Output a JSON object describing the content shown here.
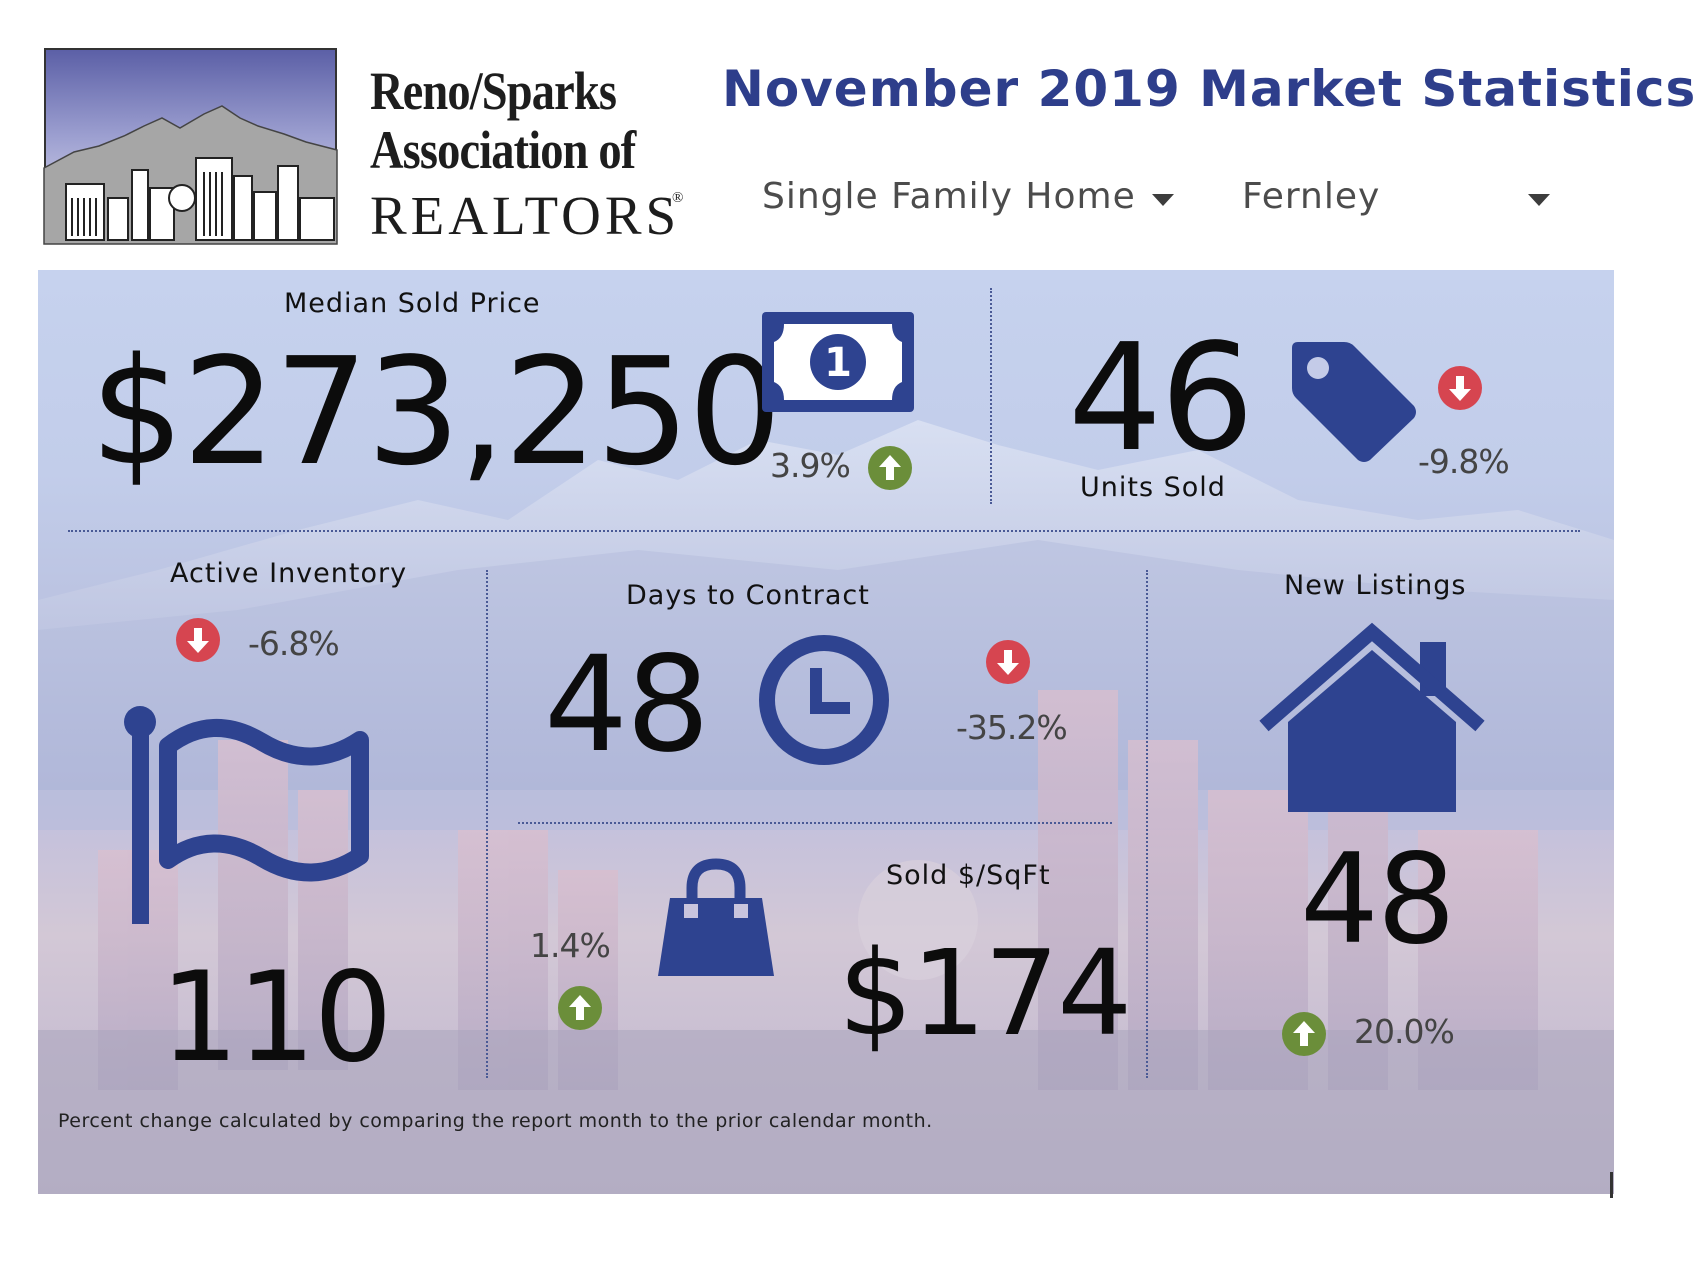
{
  "header": {
    "logo": {
      "line1": "Reno/Sparks",
      "line2": "Association of",
      "line3": "REALTORS",
      "registered": "®"
    },
    "title": "November 2019 Market Statistics",
    "filters": {
      "property_type": "Single Family Home",
      "area": "Fernley"
    }
  },
  "metrics": {
    "median_sold_price": {
      "label": "Median Sold Price",
      "value": "$273,250",
      "change": "3.9%",
      "direction": "up",
      "icon": "dollar-bill-icon"
    },
    "units_sold": {
      "label": "Units Sold",
      "value": "46",
      "change": "-9.8%",
      "direction": "down",
      "icon": "price-tag-icon"
    },
    "active_inventory": {
      "label": "Active Inventory",
      "value": "110",
      "change": "-6.8%",
      "direction": "down",
      "icon": "flag-icon"
    },
    "days_to_contract": {
      "label": "Days to Contract",
      "value": "48",
      "change": "-35.2%",
      "direction": "down",
      "icon": "clock-icon"
    },
    "sold_price_per_sqft": {
      "label": "Sold $/SqFt",
      "value": "$174",
      "change": "1.4%",
      "direction": "up",
      "icon": "shopping-bag-icon"
    },
    "new_listings": {
      "label": "New Listings",
      "value": "48",
      "change": "20.0%",
      "direction": "up",
      "icon": "house-icon"
    }
  },
  "footnote": "Percent change calculated by comparing the report month to the prior calendar month.",
  "colors": {
    "icon_blue": "#2e4390",
    "title_blue": "#2e3e8b",
    "up_green": "#6b8e3a",
    "down_red": "#d64550"
  }
}
